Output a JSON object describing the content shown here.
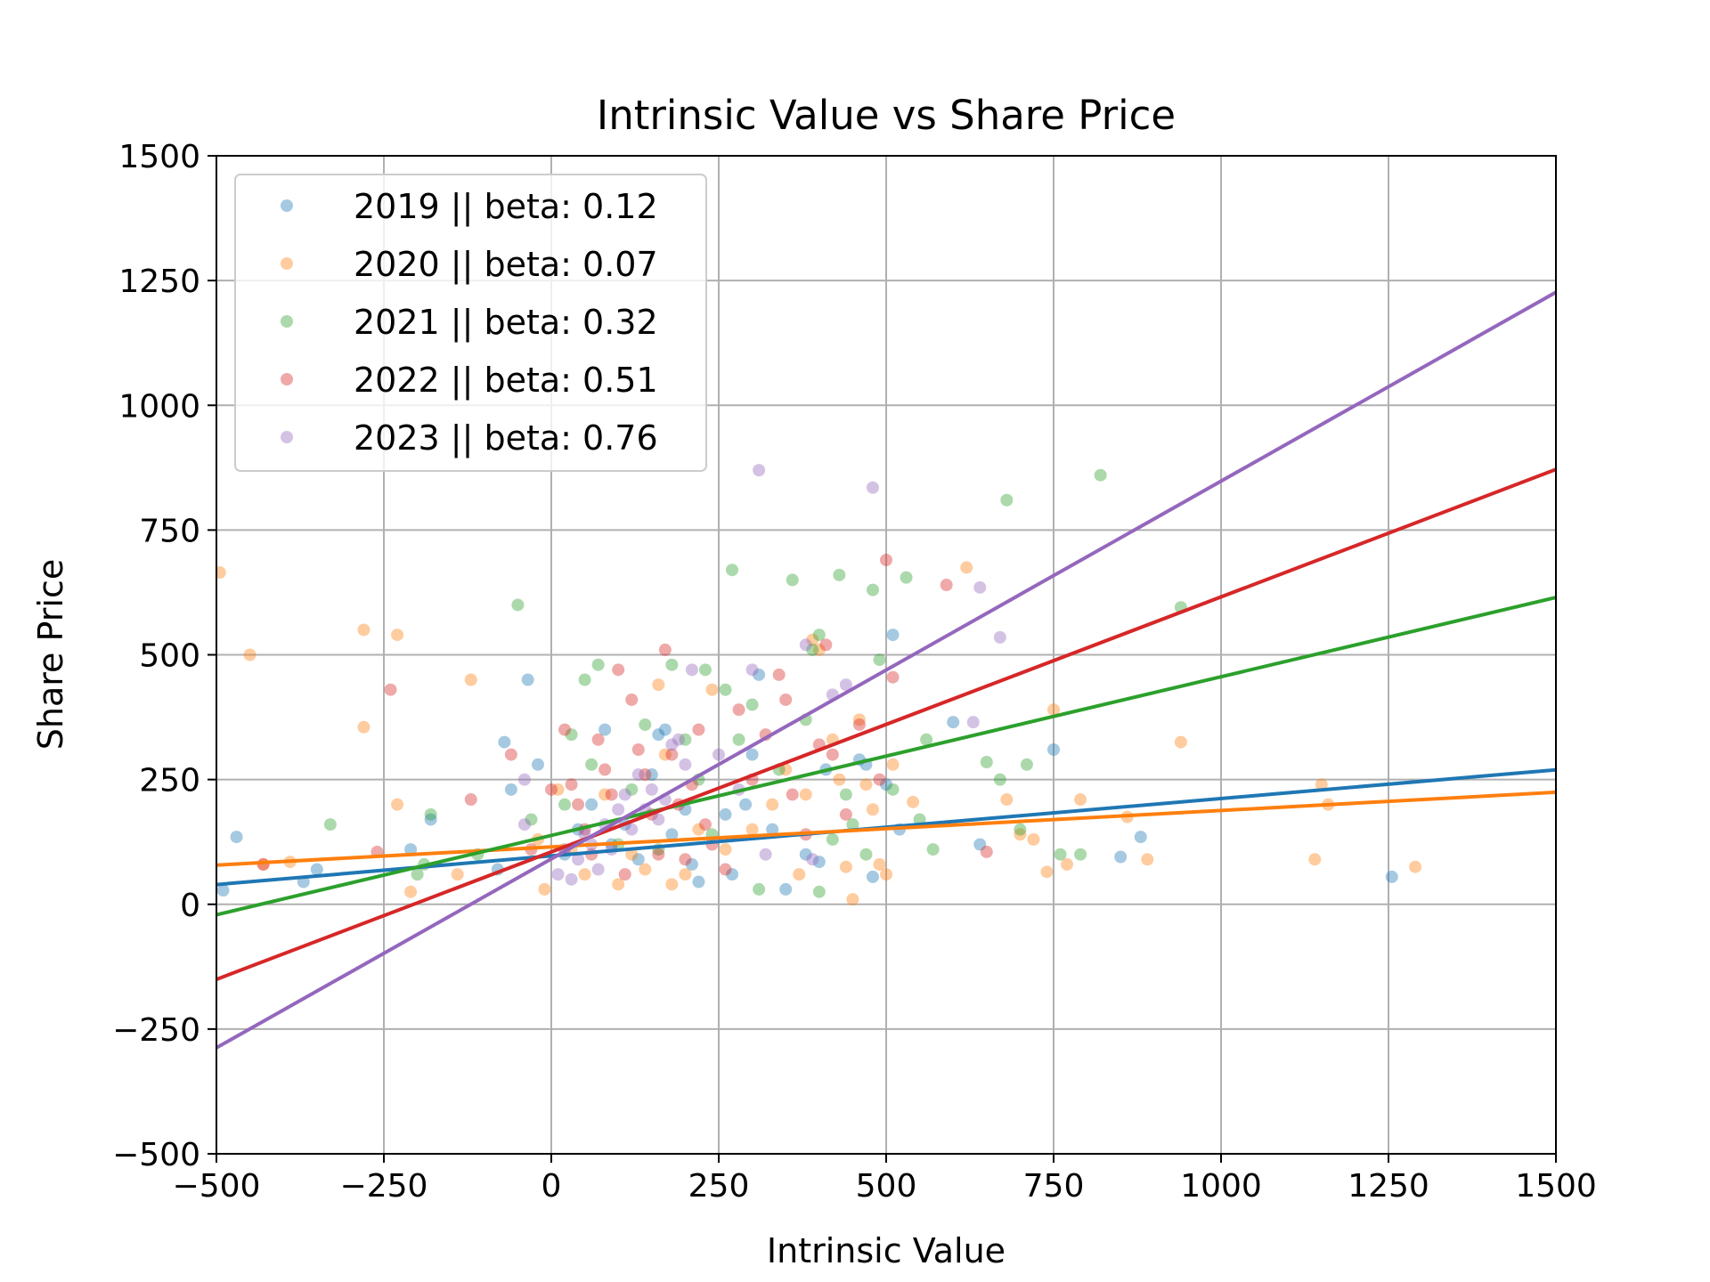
{
  "chart_data": {
    "type": "scatter",
    "title": "Intrinsic Value vs Share Price",
    "xlabel": "Intrinsic Value",
    "ylabel": "Share Price",
    "xlim": [
      -500,
      1500
    ],
    "ylim": [
      -500,
      1500
    ],
    "xticks": [
      -500,
      -250,
      0,
      250,
      500,
      750,
      1000,
      1250,
      1500
    ],
    "yticks": [
      -500,
      -250,
      0,
      250,
      500,
      750,
      1000,
      1250,
      1500
    ],
    "xtick_labels": [
      "−500",
      "−250",
      "0",
      "250",
      "500",
      "750",
      "1000",
      "1250",
      "1500"
    ],
    "ytick_labels": [
      "−500",
      "−250",
      "0",
      "250",
      "500",
      "750",
      "1000",
      "1250",
      "1500"
    ],
    "grid": true,
    "legend_position": "top-left",
    "series": [
      {
        "name": "2019 || beta: 0.12",
        "color": "#1f77b4",
        "regression": {
          "slope": 0.115,
          "intercept": 97
        },
        "points": [
          [
            -490,
            28
          ],
          [
            -470,
            135
          ],
          [
            -370,
            45
          ],
          [
            -350,
            70
          ],
          [
            -210,
            110
          ],
          [
            -180,
            170
          ],
          [
            -80,
            70
          ],
          [
            -70,
            325
          ],
          [
            -60,
            230
          ],
          [
            -35,
            450
          ],
          [
            -20,
            280
          ],
          [
            20,
            100
          ],
          [
            40,
            150
          ],
          [
            60,
            200
          ],
          [
            80,
            350
          ],
          [
            90,
            120
          ],
          [
            110,
            160
          ],
          [
            130,
            90
          ],
          [
            150,
            260
          ],
          [
            160,
            340
          ],
          [
            170,
            350
          ],
          [
            180,
            140
          ],
          [
            200,
            190
          ],
          [
            210,
            80
          ],
          [
            220,
            45
          ],
          [
            260,
            180
          ],
          [
            270,
            60
          ],
          [
            290,
            200
          ],
          [
            300,
            300
          ],
          [
            310,
            460
          ],
          [
            330,
            150
          ],
          [
            350,
            30
          ],
          [
            380,
            100
          ],
          [
            400,
            85
          ],
          [
            410,
            270
          ],
          [
            460,
            290
          ],
          [
            470,
            280
          ],
          [
            480,
            55
          ],
          [
            500,
            240
          ],
          [
            510,
            540
          ],
          [
            520,
            150
          ],
          [
            600,
            365
          ],
          [
            640,
            120
          ],
          [
            750,
            310
          ],
          [
            850,
            95
          ],
          [
            880,
            135
          ],
          [
            1255,
            55
          ]
        ]
      },
      {
        "name": "2020 || beta: 0.07",
        "color": "#ff7f0e",
        "regression": {
          "slope": 0.073,
          "intercept": 115
        },
        "points": [
          [
            -495,
            665
          ],
          [
            -450,
            500
          ],
          [
            -430,
            80
          ],
          [
            -390,
            85
          ],
          [
            -280,
            550
          ],
          [
            -280,
            355
          ],
          [
            -230,
            540
          ],
          [
            -230,
            200
          ],
          [
            -210,
            25
          ],
          [
            -120,
            450
          ],
          [
            -140,
            60
          ],
          [
            -20,
            130
          ],
          [
            -10,
            30
          ],
          [
            10,
            230
          ],
          [
            30,
            110
          ],
          [
            50,
            60
          ],
          [
            80,
            220
          ],
          [
            100,
            40
          ],
          [
            120,
            100
          ],
          [
            140,
            70
          ],
          [
            160,
            440
          ],
          [
            170,
            300
          ],
          [
            180,
            40
          ],
          [
            200,
            60
          ],
          [
            220,
            150
          ],
          [
            240,
            430
          ],
          [
            260,
            110
          ],
          [
            300,
            150
          ],
          [
            330,
            200
          ],
          [
            350,
            270
          ],
          [
            370,
            60
          ],
          [
            380,
            220
          ],
          [
            390,
            530
          ],
          [
            400,
            510
          ],
          [
            420,
            330
          ],
          [
            430,
            250
          ],
          [
            440,
            75
          ],
          [
            450,
            10
          ],
          [
            460,
            370
          ],
          [
            470,
            240
          ],
          [
            480,
            190
          ],
          [
            490,
            80
          ],
          [
            500,
            60
          ],
          [
            510,
            280
          ],
          [
            540,
            205
          ],
          [
            620,
            675
          ],
          [
            680,
            210
          ],
          [
            700,
            140
          ],
          [
            720,
            130
          ],
          [
            740,
            65
          ],
          [
            750,
            390
          ],
          [
            770,
            80
          ],
          [
            790,
            210
          ],
          [
            860,
            175
          ],
          [
            890,
            90
          ],
          [
            940,
            325
          ],
          [
            1140,
            90
          ],
          [
            1150,
            240
          ],
          [
            1160,
            200
          ],
          [
            1290,
            75
          ]
        ]
      },
      {
        "name": "2021 || beta: 0.32",
        "color": "#2ca02c",
        "regression": {
          "slope": 0.318,
          "intercept": 138
        },
        "points": [
          [
            -330,
            160
          ],
          [
            -200,
            60
          ],
          [
            -190,
            80
          ],
          [
            -180,
            180
          ],
          [
            -110,
            100
          ],
          [
            -50,
            600
          ],
          [
            -30,
            170
          ],
          [
            20,
            200
          ],
          [
            30,
            340
          ],
          [
            50,
            450
          ],
          [
            60,
            280
          ],
          [
            70,
            480
          ],
          [
            100,
            120
          ],
          [
            120,
            230
          ],
          [
            140,
            360
          ],
          [
            160,
            110
          ],
          [
            180,
            480
          ],
          [
            200,
            330
          ],
          [
            220,
            250
          ],
          [
            230,
            470
          ],
          [
            240,
            140
          ],
          [
            260,
            430
          ],
          [
            270,
            670
          ],
          [
            280,
            330
          ],
          [
            300,
            400
          ],
          [
            310,
            30
          ],
          [
            340,
            270
          ],
          [
            360,
            650
          ],
          [
            380,
            370
          ],
          [
            390,
            510
          ],
          [
            400,
            540
          ],
          [
            400,
            25
          ],
          [
            420,
            130
          ],
          [
            430,
            660
          ],
          [
            440,
            220
          ],
          [
            450,
            160
          ],
          [
            470,
            100
          ],
          [
            480,
            630
          ],
          [
            490,
            490
          ],
          [
            510,
            230
          ],
          [
            530,
            655
          ],
          [
            550,
            170
          ],
          [
            560,
            330
          ],
          [
            570,
            110
          ],
          [
            650,
            285
          ],
          [
            670,
            250
          ],
          [
            680,
            810
          ],
          [
            700,
            150
          ],
          [
            710,
            280
          ],
          [
            760,
            100
          ],
          [
            790,
            100
          ],
          [
            820,
            860
          ],
          [
            940,
            595
          ]
        ]
      },
      {
        "name": "2022 || beta: 0.51",
        "color": "#d62728",
        "regression": {
          "slope": 0.511,
          "intercept": 105
        },
        "points": [
          [
            -430,
            80
          ],
          [
            -260,
            105
          ],
          [
            -240,
            430
          ],
          [
            -120,
            210
          ],
          [
            -60,
            300
          ],
          [
            -30,
            110
          ],
          [
            0,
            230
          ],
          [
            20,
            350
          ],
          [
            30,
            240
          ],
          [
            40,
            200
          ],
          [
            50,
            150
          ],
          [
            60,
            100
          ],
          [
            70,
            330
          ],
          [
            80,
            270
          ],
          [
            90,
            220
          ],
          [
            100,
            470
          ],
          [
            110,
            60
          ],
          [
            120,
            410
          ],
          [
            130,
            310
          ],
          [
            140,
            260
          ],
          [
            150,
            180
          ],
          [
            160,
            100
          ],
          [
            170,
            510
          ],
          [
            180,
            300
          ],
          [
            190,
            200
          ],
          [
            200,
            90
          ],
          [
            210,
            240
          ],
          [
            220,
            350
          ],
          [
            230,
            160
          ],
          [
            240,
            120
          ],
          [
            260,
            70
          ],
          [
            280,
            390
          ],
          [
            300,
            250
          ],
          [
            320,
            340
          ],
          [
            340,
            460
          ],
          [
            350,
            410
          ],
          [
            360,
            220
          ],
          [
            380,
            140
          ],
          [
            400,
            320
          ],
          [
            410,
            520
          ],
          [
            420,
            300
          ],
          [
            440,
            180
          ],
          [
            460,
            360
          ],
          [
            490,
            250
          ],
          [
            500,
            690
          ],
          [
            510,
            455
          ],
          [
            590,
            640
          ],
          [
            650,
            105
          ]
        ]
      },
      {
        "name": "2023 || beta: 0.76",
        "color": "#9467bd",
        "regression": {
          "slope": 0.757,
          "intercept": 91
        },
        "points": [
          [
            -40,
            160
          ],
          [
            -40,
            250
          ],
          [
            10,
            60
          ],
          [
            20,
            110
          ],
          [
            30,
            50
          ],
          [
            40,
            90
          ],
          [
            50,
            140
          ],
          [
            60,
            120
          ],
          [
            70,
            70
          ],
          [
            80,
            160
          ],
          [
            90,
            110
          ],
          [
            100,
            190
          ],
          [
            110,
            220
          ],
          [
            120,
            150
          ],
          [
            130,
            260
          ],
          [
            140,
            190
          ],
          [
            150,
            230
          ],
          [
            160,
            170
          ],
          [
            170,
            210
          ],
          [
            180,
            320
          ],
          [
            190,
            330
          ],
          [
            200,
            280
          ],
          [
            210,
            470
          ],
          [
            250,
            300
          ],
          [
            280,
            230
          ],
          [
            300,
            470
          ],
          [
            310,
            870
          ],
          [
            320,
            100
          ],
          [
            380,
            520
          ],
          [
            390,
            90
          ],
          [
            420,
            420
          ],
          [
            440,
            440
          ],
          [
            480,
            835
          ],
          [
            630,
            365
          ],
          [
            640,
            635
          ],
          [
            670,
            535
          ]
        ]
      }
    ],
    "cluster_note_omitted": false
  }
}
